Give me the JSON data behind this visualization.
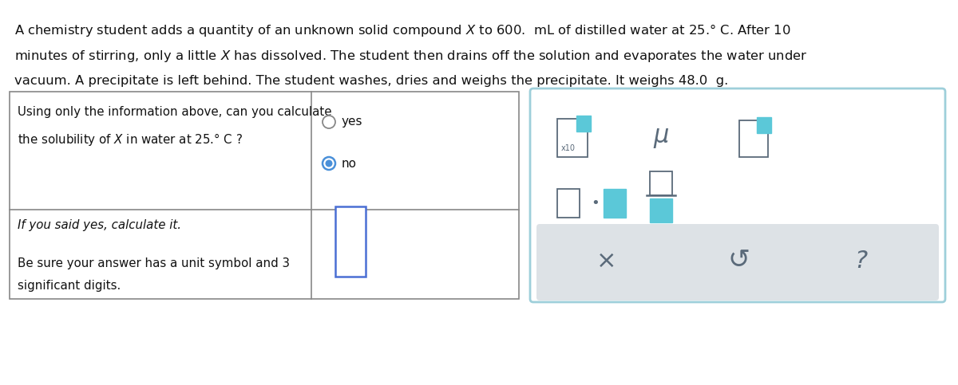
{
  "background_color": "#ffffff",
  "teal_color": "#5bc8d8",
  "gray_color": "#5a6a7a",
  "light_gray": "#dde2e6",
  "panel_border_color": "#9ecfda",
  "blue_input": "#4a6fd4",
  "radio_blue": "#4a90d9",
  "table_border": "#888888",
  "text_dark": "#111111",
  "line1": "A chemistry student adds a quantity of an unknown solid compound $X$ to 600.  mL of distilled water at 25.° C. After 10",
  "line2": "minutes of stirring, only a little $X$ has dissolved. The student then drains off the solution and evaporates the water under",
  "line3": "vacuum. A precipitate is left behind. The student washes, dries and weighs the precipitate. It weighs 48.0  g."
}
